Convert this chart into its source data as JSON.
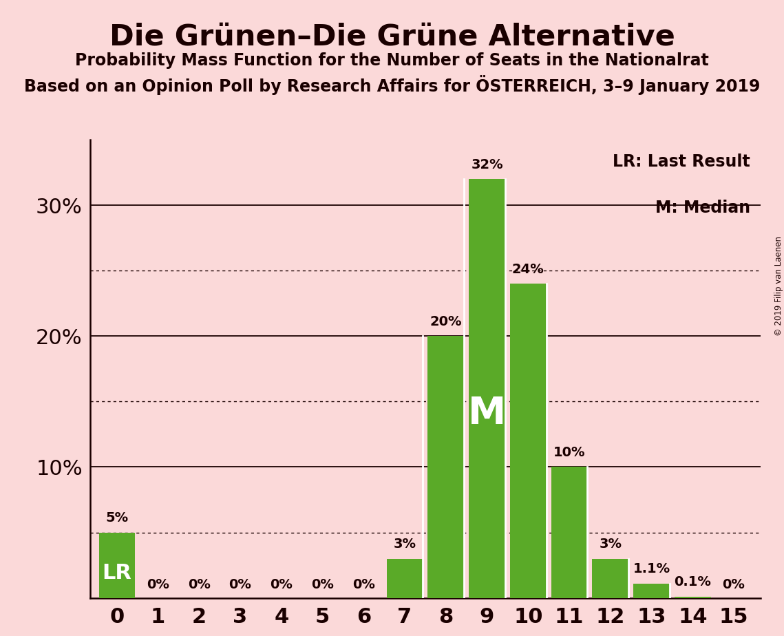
{
  "title": "Die Grünen–Die Grüne Alternative",
  "subtitle1": "Probability Mass Function for the Number of Seats in the Nationalrat",
  "subtitle2": "Based on an Opinion Poll by Research Affairs for ÖSTERREICH, 3–9 January 2019",
  "copyright": "© 2019 Filip van Laenen",
  "x_labels": [
    0,
    1,
    2,
    3,
    4,
    5,
    6,
    7,
    8,
    9,
    10,
    11,
    12,
    13,
    14,
    15
  ],
  "values": [
    5.0,
    0.0,
    0.0,
    0.0,
    0.0,
    0.0,
    0.0,
    3.0,
    20.0,
    32.0,
    24.0,
    10.0,
    3.0,
    1.1,
    0.1,
    0.0
  ],
  "bar_color": "#5aaa28",
  "background_color": "#fbd9d9",
  "text_color": "#1a0000",
  "lr_index": 0,
  "median_index": 9,
  "ylim_max": 35,
  "solid_yticks": [
    10,
    20,
    30
  ],
  "dotted_yticks": [
    5,
    15,
    25
  ],
  "legend_lr": "LR: Last Result",
  "legend_m": "M: Median",
  "bar_labels": [
    "5%",
    "0%",
    "0%",
    "0%",
    "0%",
    "0%",
    "0%",
    "3%",
    "20%",
    "32%",
    "24%",
    "10%",
    "3%",
    "1.1%",
    "0.1%",
    "0%"
  ]
}
